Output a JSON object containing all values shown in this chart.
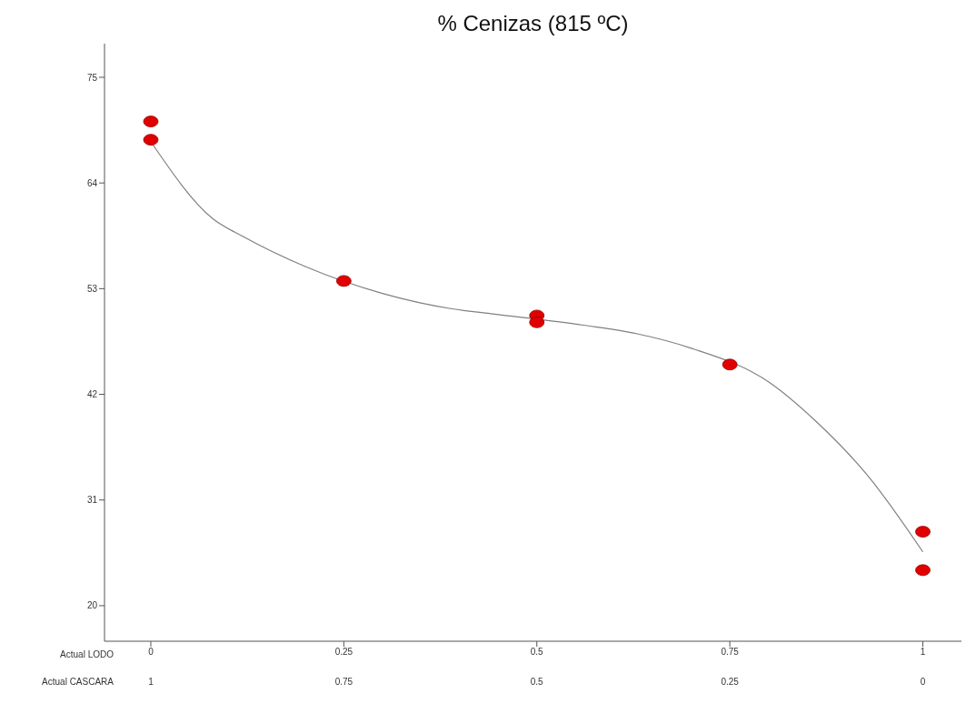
{
  "chart_data": {
    "type": "scatter",
    "title": "% Cenizas (815 ºC)",
    "xlabel": "Actual LODO",
    "x2label": "Actual CASCARA",
    "xlim": [
      -0.06,
      1.05
    ],
    "xticks": [
      0,
      0.25,
      0.5,
      0.75,
      1
    ],
    "x2lim": [
      1.06,
      -0.05
    ],
    "x2ticks": [
      1,
      0.75,
      0.5,
      0.25,
      0
    ],
    "ylim": [
      16.3,
      78.5
    ],
    "yticks": [
      20,
      31,
      42,
      53,
      64,
      75
    ],
    "grid": false,
    "legend": false,
    "series": [
      {
        "color": "#e00000",
        "marker": "circle",
        "x": [
          0,
          0,
          0.25,
          0.5,
          0.5,
          0.75,
          1,
          1
        ],
        "values": [
          70.4,
          68.5,
          53.8,
          50.2,
          49.5,
          45.1,
          27.7,
          23.7
        ]
      },
      {
        "type": "line",
        "color": "#808080",
        "marker": "none",
        "line_style": "solid",
        "x": [
          0,
          0.08,
          0.12,
          0.2,
          0.3,
          0.39,
          0.44,
          0.56,
          0.63,
          0.7,
          0.8,
          0.86,
          0.93,
          1
        ],
        "values": [
          68.3,
          60.3,
          58.4,
          55.3,
          52.5,
          50.9,
          50.4,
          49.2,
          48.3,
          46.8,
          43.3,
          39.3,
          33.4,
          25.6
        ]
      }
    ]
  }
}
